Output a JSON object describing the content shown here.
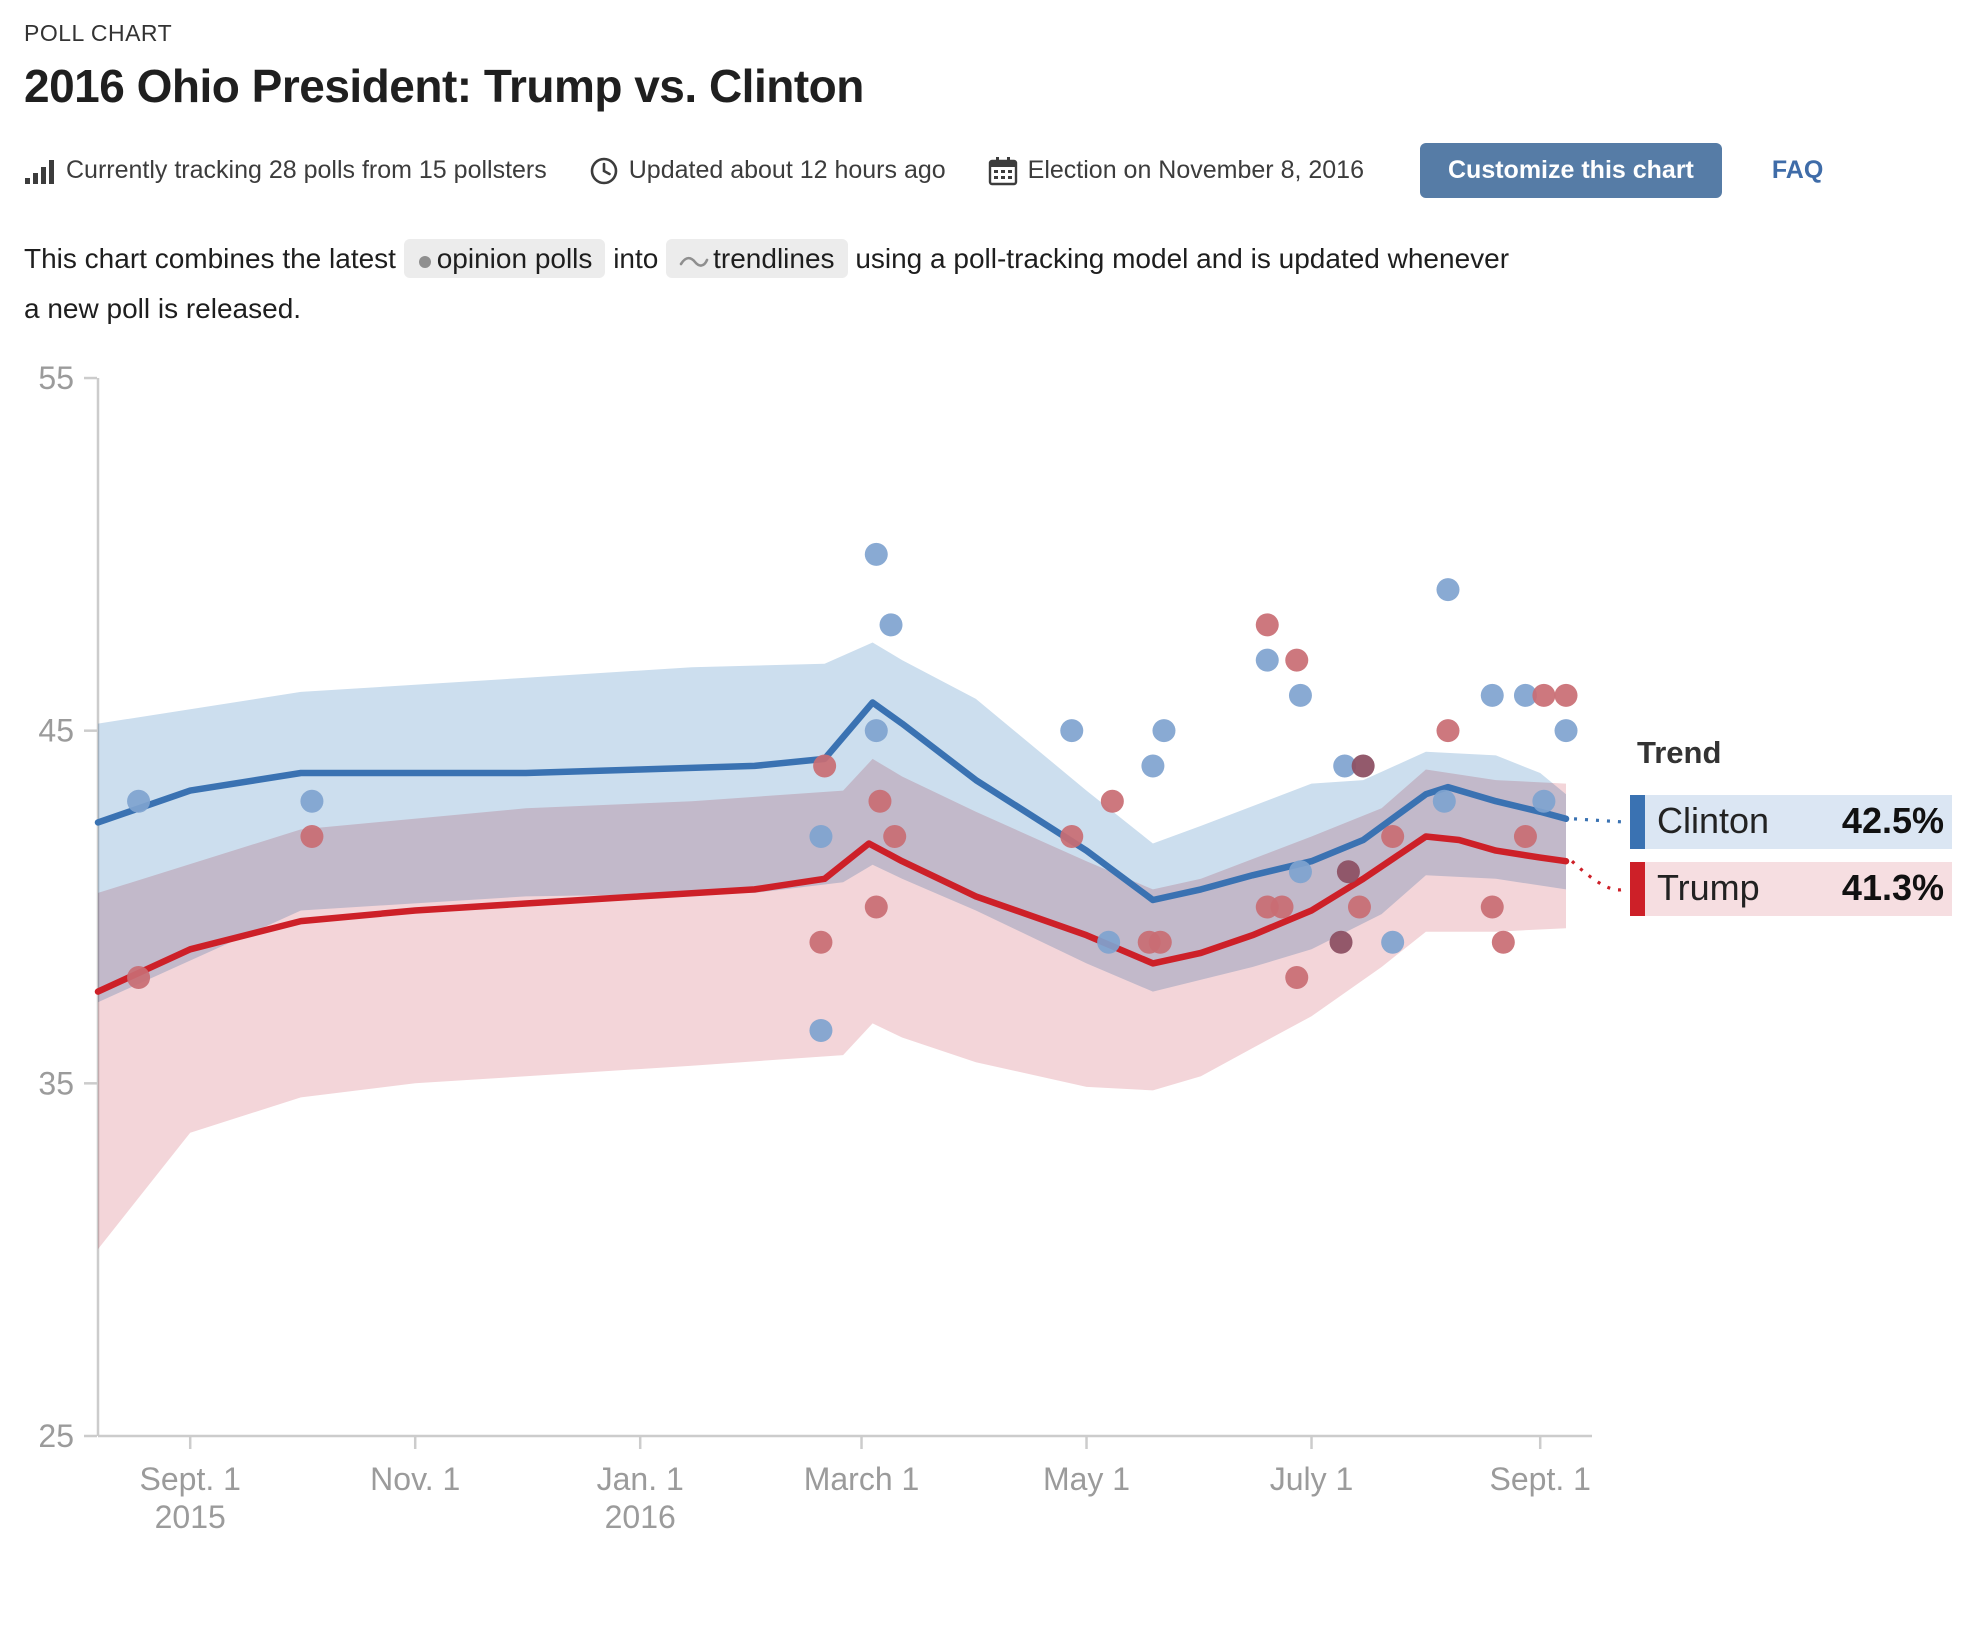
{
  "header": {
    "kicker": "POLL CHART",
    "title": "2016 Ohio President: Trump vs. Clinton"
  },
  "meta": {
    "tracking": "Currently tracking 28 polls from 15 pollsters",
    "updated": "Updated about 12 hours ago",
    "election": "Election on November 8, 2016",
    "customize_button": "Customize this chart",
    "faq": "FAQ"
  },
  "description": {
    "before": "This chart combines the latest",
    "chip_polls": "opinion polls",
    "middle": "into",
    "chip_trendlines": "trendlines",
    "after": "using a poll-tracking model and is updated whenever a new poll is released."
  },
  "legend": {
    "heading": "Trend",
    "clinton_name": "Clinton",
    "clinton_value": "42.5%",
    "trump_name": "Trump",
    "trump_value": "41.3%"
  },
  "colors": {
    "clinton_line": "#3a72b2",
    "trump_line": "#cd2028",
    "clinton_dot": "#7fa3cf",
    "trump_dot": "#c96d73",
    "overlap_dot": "#8d5164",
    "clinton_band": "#ccdeee",
    "trump_band": "#f3d5d9",
    "legend_clinton_bg": "#dbe6f3",
    "legend_trump_bg": "#f6dee1",
    "button_bg": "#567ca6",
    "link": "#3f6ca8",
    "axis_line": "#cccccc",
    "axis_text": "#9b9b9b"
  },
  "chart_data": {
    "type": "line",
    "title": "2016 Ohio President: Trump vs. Clinton",
    "ylim": [
      25,
      55
    ],
    "yticks": [
      55,
      45,
      35,
      25
    ],
    "x_range": [
      "2015-08-07",
      "2016-09-08"
    ],
    "xticks": [
      {
        "date": "2015-09-01",
        "label": "Sept. 1",
        "sublabel": "2015"
      },
      {
        "date": "2015-11-01",
        "label": "Nov. 1",
        "sublabel": ""
      },
      {
        "date": "2016-01-01",
        "label": "Jan. 1",
        "sublabel": "2016"
      },
      {
        "date": "2016-03-01",
        "label": "March 1",
        "sublabel": ""
      },
      {
        "date": "2016-05-01",
        "label": "May 1",
        "sublabel": ""
      },
      {
        "date": "2016-07-01",
        "label": "July 1",
        "sublabel": ""
      },
      {
        "date": "2016-09-01",
        "label": "Sept. 1",
        "sublabel": ""
      }
    ],
    "series": [
      {
        "name": "Clinton",
        "end_value": 42.5,
        "trend": [
          [
            "2015-08-07",
            42.4
          ],
          [
            "2015-09-01",
            43.3
          ],
          [
            "2015-10-01",
            43.8
          ],
          [
            "2015-11-01",
            43.8
          ],
          [
            "2015-12-01",
            43.8
          ],
          [
            "2016-01-01",
            43.9
          ],
          [
            "2016-02-01",
            44.0
          ],
          [
            "2016-02-20",
            44.2
          ],
          [
            "2016-03-04",
            45.8
          ],
          [
            "2016-03-12",
            45.2
          ],
          [
            "2016-04-01",
            43.6
          ],
          [
            "2016-05-01",
            41.6
          ],
          [
            "2016-05-19",
            40.2
          ],
          [
            "2016-06-01",
            40.5
          ],
          [
            "2016-06-15",
            40.9
          ],
          [
            "2016-07-01",
            41.3
          ],
          [
            "2016-07-15",
            41.9
          ],
          [
            "2016-08-01",
            43.2
          ],
          [
            "2016-08-07",
            43.4
          ],
          [
            "2016-08-20",
            43.0
          ],
          [
            "2016-09-01",
            42.7
          ],
          [
            "2016-09-08",
            42.5
          ]
        ],
        "band_upper": [
          [
            "2015-08-07",
            45.2
          ],
          [
            "2015-10-01",
            46.1
          ],
          [
            "2015-12-01",
            46.5
          ],
          [
            "2016-01-15",
            46.8
          ],
          [
            "2016-02-20",
            46.9
          ],
          [
            "2016-03-04",
            47.5
          ],
          [
            "2016-03-12",
            47.0
          ],
          [
            "2016-04-01",
            45.9
          ],
          [
            "2016-05-01",
            43.3
          ],
          [
            "2016-05-19",
            41.8
          ],
          [
            "2016-06-01",
            42.3
          ],
          [
            "2016-07-01",
            43.5
          ],
          [
            "2016-07-15",
            43.6
          ],
          [
            "2016-08-01",
            44.4
          ],
          [
            "2016-08-20",
            44.3
          ],
          [
            "2016-09-01",
            43.8
          ],
          [
            "2016-09-08",
            43.2
          ]
        ],
        "band_lower": [
          [
            "2015-08-07",
            37.3
          ],
          [
            "2015-10-01",
            39.9
          ],
          [
            "2015-12-01",
            40.3
          ],
          [
            "2016-02-01",
            40.4
          ],
          [
            "2016-02-25",
            40.7
          ],
          [
            "2016-03-04",
            41.2
          ],
          [
            "2016-03-12",
            40.8
          ],
          [
            "2016-04-01",
            39.9
          ],
          [
            "2016-05-01",
            38.4
          ],
          [
            "2016-05-19",
            37.6
          ],
          [
            "2016-06-15",
            38.3
          ],
          [
            "2016-07-01",
            38.8
          ],
          [
            "2016-07-20",
            39.8
          ],
          [
            "2016-08-01",
            40.9
          ],
          [
            "2016-08-20",
            40.8
          ],
          [
            "2016-09-08",
            40.5
          ]
        ],
        "polls": [
          [
            "2015-08-18",
            43
          ],
          [
            "2015-10-04",
            43
          ],
          [
            "2016-02-19",
            42
          ],
          [
            "2016-02-19",
            36.5
          ],
          [
            "2016-03-05",
            50
          ],
          [
            "2016-03-09",
            48
          ],
          [
            "2016-03-05",
            45
          ],
          [
            "2016-04-27",
            45
          ],
          [
            "2016-05-07",
            39
          ],
          [
            "2016-05-19",
            44
          ],
          [
            "2016-05-22",
            45
          ],
          [
            "2016-06-19",
            47
          ],
          [
            "2016-06-28",
            46
          ],
          [
            "2016-06-28",
            41
          ],
          [
            "2016-07-10",
            44
          ],
          [
            "2016-07-23",
            39
          ],
          [
            "2016-08-06",
            43
          ],
          [
            "2016-08-07",
            49
          ],
          [
            "2016-08-19",
            46
          ],
          [
            "2016-08-28",
            46
          ],
          [
            "2016-09-02",
            43
          ],
          [
            "2016-09-08",
            45
          ]
        ]
      },
      {
        "name": "Trump",
        "end_value": 41.3,
        "trend": [
          [
            "2015-08-07",
            37.6
          ],
          [
            "2015-09-01",
            38.8
          ],
          [
            "2015-10-01",
            39.6
          ],
          [
            "2015-11-01",
            39.9
          ],
          [
            "2015-12-01",
            40.1
          ],
          [
            "2016-01-01",
            40.3
          ],
          [
            "2016-02-01",
            40.5
          ],
          [
            "2016-02-20",
            40.8
          ],
          [
            "2016-03-03",
            41.8
          ],
          [
            "2016-03-12",
            41.3
          ],
          [
            "2016-04-01",
            40.3
          ],
          [
            "2016-05-01",
            39.2
          ],
          [
            "2016-05-19",
            38.4
          ],
          [
            "2016-06-01",
            38.7
          ],
          [
            "2016-06-15",
            39.2
          ],
          [
            "2016-07-01",
            39.9
          ],
          [
            "2016-07-15",
            40.8
          ],
          [
            "2016-08-01",
            42.0
          ],
          [
            "2016-08-10",
            41.9
          ],
          [
            "2016-08-20",
            41.6
          ],
          [
            "2016-09-01",
            41.4
          ],
          [
            "2016-09-08",
            41.3
          ]
        ],
        "band_upper": [
          [
            "2015-08-07",
            40.4
          ],
          [
            "2015-10-01",
            42.2
          ],
          [
            "2015-12-01",
            42.8
          ],
          [
            "2016-01-15",
            43.0
          ],
          [
            "2016-02-25",
            43.3
          ],
          [
            "2016-03-04",
            44.2
          ],
          [
            "2016-03-12",
            43.7
          ],
          [
            "2016-04-01",
            42.7
          ],
          [
            "2016-05-01",
            41.3
          ],
          [
            "2016-05-19",
            40.5
          ],
          [
            "2016-06-01",
            40.8
          ],
          [
            "2016-07-01",
            42.0
          ],
          [
            "2016-07-20",
            42.8
          ],
          [
            "2016-08-01",
            43.9
          ],
          [
            "2016-08-20",
            43.6
          ],
          [
            "2016-09-08",
            43.5
          ]
        ],
        "band_lower": [
          [
            "2015-08-07",
            30.3
          ],
          [
            "2015-09-01",
            33.6
          ],
          [
            "2015-10-01",
            34.6
          ],
          [
            "2015-11-01",
            35.0
          ],
          [
            "2015-12-01",
            35.2
          ],
          [
            "2016-01-15",
            35.5
          ],
          [
            "2016-02-25",
            35.8
          ],
          [
            "2016-03-04",
            36.7
          ],
          [
            "2016-03-12",
            36.3
          ],
          [
            "2016-04-01",
            35.6
          ],
          [
            "2016-05-01",
            34.9
          ],
          [
            "2016-05-19",
            34.8
          ],
          [
            "2016-06-01",
            35.2
          ],
          [
            "2016-06-15",
            36.0
          ],
          [
            "2016-07-01",
            36.9
          ],
          [
            "2016-07-20",
            38.3
          ],
          [
            "2016-08-01",
            39.3
          ],
          [
            "2016-08-20",
            39.3
          ],
          [
            "2016-09-08",
            39.4
          ]
        ],
        "polls": [
          [
            "2015-08-18",
            38
          ],
          [
            "2015-10-04",
            42
          ],
          [
            "2016-02-19",
            39
          ],
          [
            "2016-02-20",
            44
          ],
          [
            "2016-03-06",
            43
          ],
          [
            "2016-03-10",
            42
          ],
          [
            "2016-03-05",
            40
          ],
          [
            "2016-04-27",
            42
          ],
          [
            "2016-05-08",
            43
          ],
          [
            "2016-05-18",
            39
          ],
          [
            "2016-05-21",
            39
          ],
          [
            "2016-06-19",
            48
          ],
          [
            "2016-06-19",
            40
          ],
          [
            "2016-06-23",
            40
          ],
          [
            "2016-06-27",
            47
          ],
          [
            "2016-06-27",
            38
          ],
          [
            "2016-07-14",
            40
          ],
          [
            "2016-07-23",
            42
          ],
          [
            "2016-08-07",
            45
          ],
          [
            "2016-08-19",
            40
          ],
          [
            "2016-08-22",
            39
          ],
          [
            "2016-08-28",
            42
          ],
          [
            "2016-09-02",
            46
          ],
          [
            "2016-09-08",
            46
          ]
        ]
      }
    ],
    "overlap_polls": [
      [
        "2016-07-09",
        39
      ],
      [
        "2016-07-11",
        41
      ],
      [
        "2016-07-15",
        44
      ]
    ]
  }
}
